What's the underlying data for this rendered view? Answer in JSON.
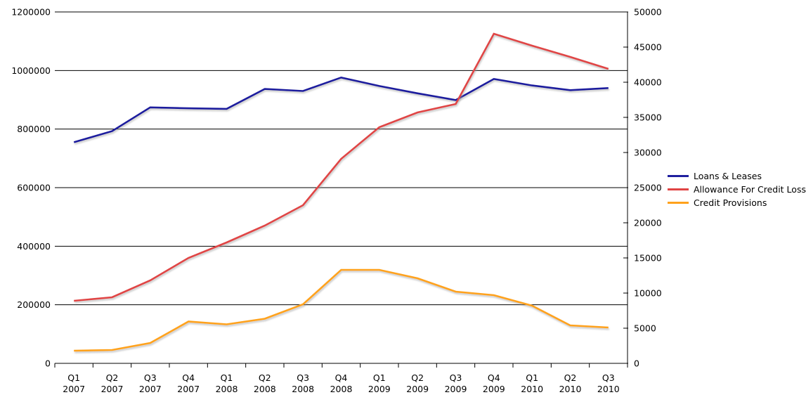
{
  "chart_data": {
    "type": "line",
    "title": "",
    "categories": [
      "Q1 2007",
      "Q2 2007",
      "Q3 2007",
      "Q4 2007",
      "Q1 2008",
      "Q2 2008",
      "Q3 2008",
      "Q4 2008",
      "Q1 2009",
      "Q2 2009",
      "Q3 2009",
      "Q4 2009",
      "Q1 2010",
      "Q2 2010",
      "Q3 2010"
    ],
    "series": [
      {
        "name": "Loans & Leases",
        "axis": "left",
        "color": "#1F1F9E",
        "values": [
          755000,
          793000,
          874000,
          871000,
          869000,
          937000,
          930000,
          976000,
          947000,
          922000,
          899000,
          971000,
          949000,
          933000,
          940000
        ]
      },
      {
        "name": "Allowance For Credit Loss",
        "axis": "right",
        "color": "#E04444",
        "values": [
          8900,
          9400,
          11800,
          15000,
          17200,
          19600,
          22500,
          29100,
          33600,
          35700,
          36900,
          46900,
          45200,
          43600,
          41900
        ]
      },
      {
        "name": "Credit Provisions",
        "axis": "right",
        "color": "#FFA21C",
        "values": [
          1800,
          1900,
          2900,
          5950,
          5550,
          6350,
          8400,
          13300,
          13300,
          12100,
          10200,
          9700,
          8200,
          5400,
          5100
        ]
      }
    ],
    "left_axis": {
      "min": 0,
      "max": 1200000,
      "tick_values": [
        0,
        200000,
        400000,
        600000,
        800000,
        1000000,
        1200000
      ],
      "tick_labels": [
        "0",
        "200000",
        "400000",
        "600000",
        "800000",
        "1000000",
        "1200000"
      ]
    },
    "right_axis": {
      "min": 0,
      "max": 50000,
      "tick_values": [
        0,
        5000,
        10000,
        15000,
        20000,
        25000,
        30000,
        35000,
        40000,
        45000,
        50000
      ],
      "tick_labels": [
        "0",
        "5000",
        "10000",
        "15000",
        "20000",
        "25000",
        "30000",
        "35000",
        "40000",
        "45000",
        "50000"
      ]
    },
    "grid": true,
    "grid_color": "#000000",
    "legend_position": "right",
    "background_color": "#ffffff",
    "text_color": "#000000"
  }
}
